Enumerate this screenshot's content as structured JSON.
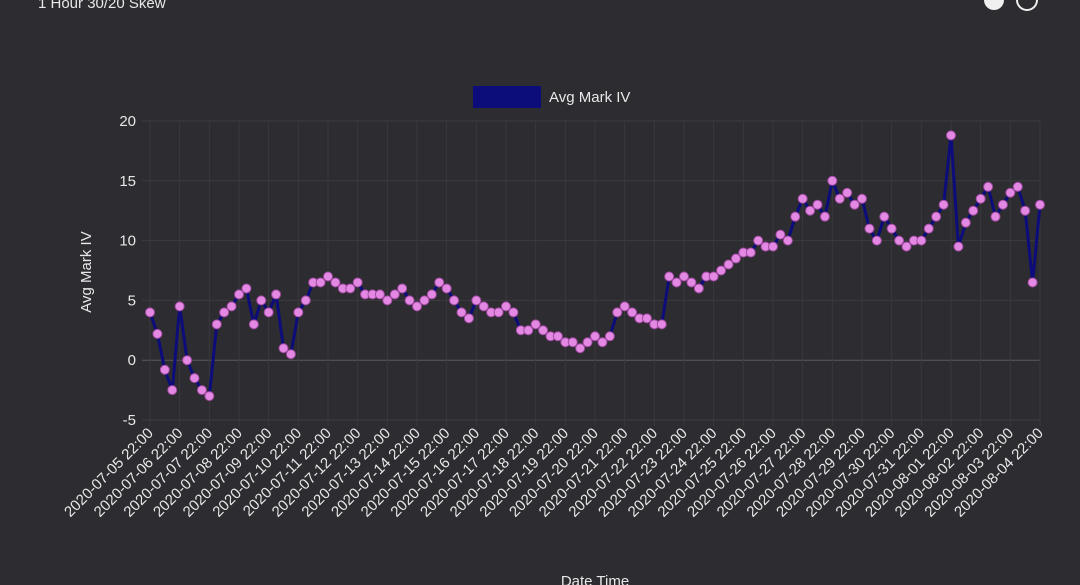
{
  "chart_data": {
    "type": "line",
    "title": "1 Hour 30/20 Skew",
    "legend": "Avg Mark IV",
    "y_label": "Avg Mark IV",
    "x_label": "Date Time",
    "categories": [
      "2020-07-05 22:00",
      null,
      null,
      null,
      "2020-07-06 22:00",
      null,
      null,
      null,
      "2020-07-07 22:00",
      null,
      null,
      null,
      "2020-07-08 22:00",
      null,
      null,
      null,
      "2020-07-09 22:00",
      null,
      null,
      null,
      "2020-07-10 22:00",
      null,
      null,
      null,
      "2020-07-11 22:00",
      null,
      null,
      null,
      "2020-07-12 22:00",
      null,
      null,
      null,
      "2020-07-13 22:00",
      null,
      null,
      null,
      "2020-07-14 22:00",
      null,
      null,
      null,
      "2020-07-15 22:00",
      null,
      null,
      null,
      "2020-07-16 22:00",
      null,
      null,
      null,
      "2020-07-17 22:00",
      null,
      null,
      null,
      "2020-07-18 22:00",
      null,
      null,
      null,
      "2020-07-19 22:00",
      null,
      null,
      null,
      "2020-07-20 22:00",
      null,
      null,
      null,
      "2020-07-21 22:00",
      null,
      null,
      null,
      "2020-07-22 22:00",
      null,
      null,
      null,
      "2020-07-23 22:00",
      null,
      null,
      null,
      "2020-07-24 22:00",
      null,
      null,
      null,
      "2020-07-25 22:00",
      null,
      null,
      null,
      "2020-07-26 22:00",
      null,
      null,
      null,
      "2020-07-27 22:00",
      null,
      null,
      null,
      "2020-07-28 22:00",
      null,
      null,
      null,
      "2020-07-29 22:00",
      null,
      null,
      null,
      "2020-07-30 22:00",
      null,
      null,
      null,
      "2020-07-31 22:00",
      null,
      null,
      null,
      "2020-08-01 22:00",
      null,
      null,
      null,
      "2020-08-02 22:00",
      null,
      null,
      null,
      "2020-08-03 22:00",
      null,
      null,
      null,
      "2020-08-04 22:00"
    ],
    "values": [
      4,
      2.2,
      -0.8,
      -2.5,
      4.5,
      0,
      -1.5,
      -2.5,
      -3,
      3,
      4,
      4.5,
      5.5,
      6,
      3,
      5,
      4,
      5.5,
      1,
      0.5,
      4,
      5,
      6.5,
      6.5,
      7,
      6.5,
      6,
      6,
      6.5,
      5.5,
      5.5,
      5.5,
      5,
      5.5,
      6,
      5,
      4.5,
      5,
      5.5,
      6.5,
      6,
      5,
      4,
      3.5,
      5,
      4.5,
      4,
      4,
      4.5,
      4,
      2.5,
      2.5,
      3,
      2.5,
      2,
      2,
      1.5,
      1.5,
      1,
      1.5,
      2,
      1.5,
      2,
      4,
      4.5,
      4,
      3.5,
      3.5,
      3,
      3,
      7,
      6.5,
      7,
      6.5,
      6,
      7,
      7,
      7.5,
      8,
      8.5,
      9,
      9,
      10,
      9.5,
      9.5,
      10.5,
      10,
      12,
      13.5,
      12.5,
      13,
      12,
      15,
      13.5,
      14,
      13,
      13.5,
      11,
      10,
      12,
      11,
      10,
      9.5,
      10,
      10,
      11,
      12,
      13,
      18.8,
      9.5,
      11.5,
      12.5,
      13.5,
      14.5,
      12,
      13,
      14,
      14.5,
      12.5,
      6.5,
      13
    ],
    "line_color": "#0c0c7a",
    "marker_color": "#e389e3",
    "ylim": [
      -5,
      20
    ],
    "yticks": [
      -5,
      0,
      5,
      10,
      15,
      20
    ],
    "grid": true
  }
}
